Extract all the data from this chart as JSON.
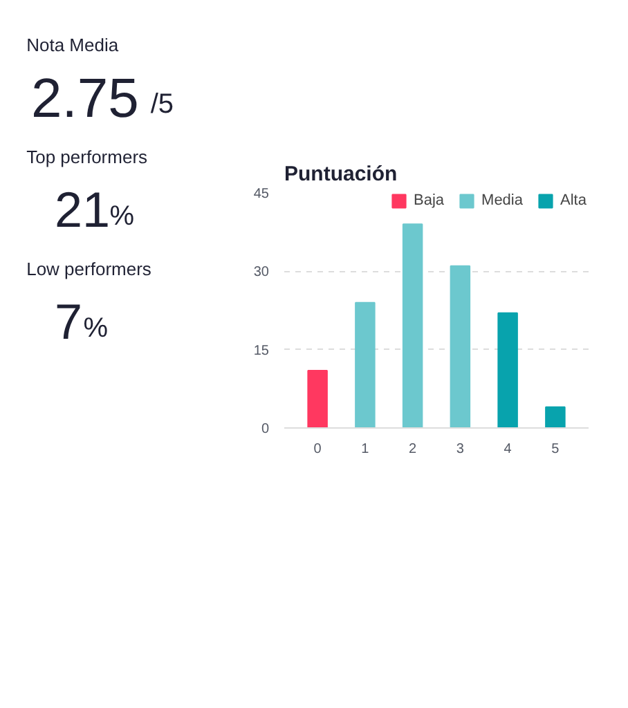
{
  "chart_data": [
    {
      "type": "other",
      "title": "Nota Media",
      "annotations": [
        "2.75",
        "/5",
        "Top performers",
        "21",
        "%",
        "Low performers",
        "7",
        "%"
      ]
    },
    {
      "type": "bar",
      "title": "Puntuación",
      "categories": [
        "0",
        "1",
        "2",
        "3",
        "4",
        "5"
      ],
      "series": [
        {
          "name": "Baja",
          "color": "#ff3860",
          "values": [
            11,
            null,
            null,
            null,
            null,
            null
          ]
        },
        {
          "name": "Media",
          "color": "#6cc8ce",
          "values": [
            null,
            24,
            39,
            31,
            null,
            null
          ]
        },
        {
          "name": "Alta",
          "color": "#08a3ad",
          "values": [
            null,
            null,
            null,
            null,
            22,
            4
          ]
        }
      ],
      "ylim": [
        0,
        45
      ],
      "yticks": [
        0,
        15,
        30,
        45
      ],
      "grid": "y",
      "legend": "top right"
    }
  ]
}
